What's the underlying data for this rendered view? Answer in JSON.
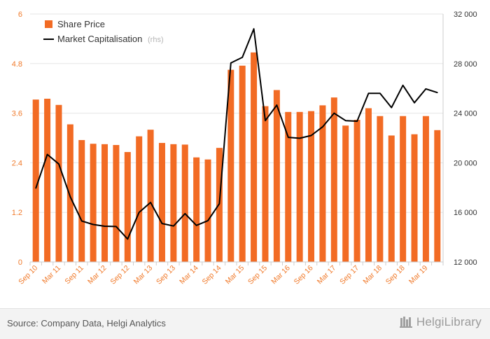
{
  "chart_data": {
    "type": "bar",
    "categories": [
      "Sep 10",
      "Dec 10",
      "Mar 11",
      "Jun 11",
      "Sep 11",
      "Dec 11",
      "Mar 12",
      "Jun 12",
      "Sep 12",
      "Dec 12",
      "Mar 13",
      "Jun 13",
      "Sep 13",
      "Dec 13",
      "Mar 14",
      "Jun 14",
      "Sep 14",
      "Dec 14",
      "Mar 15",
      "Jun 15",
      "Sep 15",
      "Dec 15",
      "Mar 16",
      "Jun 16",
      "Sep 16",
      "Dec 16",
      "Mar 17",
      "Jun 17",
      "Sep 17",
      "Dec 17",
      "Mar 18",
      "Jun 18",
      "Sep 18",
      "Dec 18",
      "Mar 19",
      "Jun 19"
    ],
    "x_tick_labels": [
      "Sep 10",
      "",
      "Mar 11",
      "",
      "Sep 11",
      "",
      "Mar 12",
      "",
      "Sep 12",
      "",
      "Mar 13",
      "",
      "Sep 13",
      "",
      "Mar 14",
      "",
      "Sep 14",
      "",
      "Mar 15",
      "",
      "Sep 15",
      "",
      "Mar 16",
      "",
      "Sep 16",
      "",
      "Mar 17",
      "",
      "Sep 17",
      "",
      "Mar 18",
      "",
      "Sep 18",
      "",
      "Mar 19",
      ""
    ],
    "series": [
      {
        "name": "Share Price",
        "type": "bar",
        "axis": "left",
        "color": "#f26b24",
        "values": [
          3.93,
          3.95,
          3.8,
          3.33,
          2.95,
          2.86,
          2.85,
          2.83,
          2.66,
          3.04,
          3.2,
          2.88,
          2.85,
          2.84,
          2.53,
          2.48,
          2.76,
          4.65,
          4.75,
          5.07,
          3.77,
          4.16,
          3.63,
          3.63,
          3.65,
          3.79,
          3.98,
          3.3,
          3.44,
          3.72,
          3.53,
          3.06,
          3.53,
          3.09,
          3.53,
          3.19
        ]
      },
      {
        "name": "Market Capitalisation",
        "name_note": "(rhs)",
        "type": "line",
        "axis": "right",
        "color": "#000000",
        "values": [
          17950,
          20670,
          19900,
          17250,
          15300,
          15020,
          14880,
          14860,
          13850,
          16000,
          16800,
          15100,
          14900,
          15900,
          14950,
          15330,
          16700,
          28050,
          28500,
          30800,
          23400,
          24650,
          22050,
          21980,
          22200,
          22900,
          24000,
          23400,
          23350,
          25600,
          25600,
          24450,
          26250,
          24840,
          25960,
          25660
        ]
      }
    ],
    "y_left": {
      "lim": [
        0,
        6
      ],
      "ticks": [
        "0",
        "1.2",
        "2.4",
        "3.6",
        "4.8",
        "6"
      ]
    },
    "y_right": {
      "lim": [
        12000,
        32000
      ],
      "ticks": [
        "12 000",
        "16 000",
        "20 000",
        "24 000",
        "28 000",
        "32 000"
      ]
    },
    "grid": true,
    "legend_position": "top-left"
  },
  "footer": {
    "source": "Source: Company Data, Helgi Analytics",
    "brand": "HelgiLibrary"
  },
  "colors": {
    "bar": "#f26b24",
    "line": "#000000",
    "left_axis_text": "#f07a2b",
    "x_axis_text": "#f07a2b",
    "right_axis_text": "#333333",
    "grid": "#e6e6e6",
    "footer_bg": "#f3f3f3"
  }
}
